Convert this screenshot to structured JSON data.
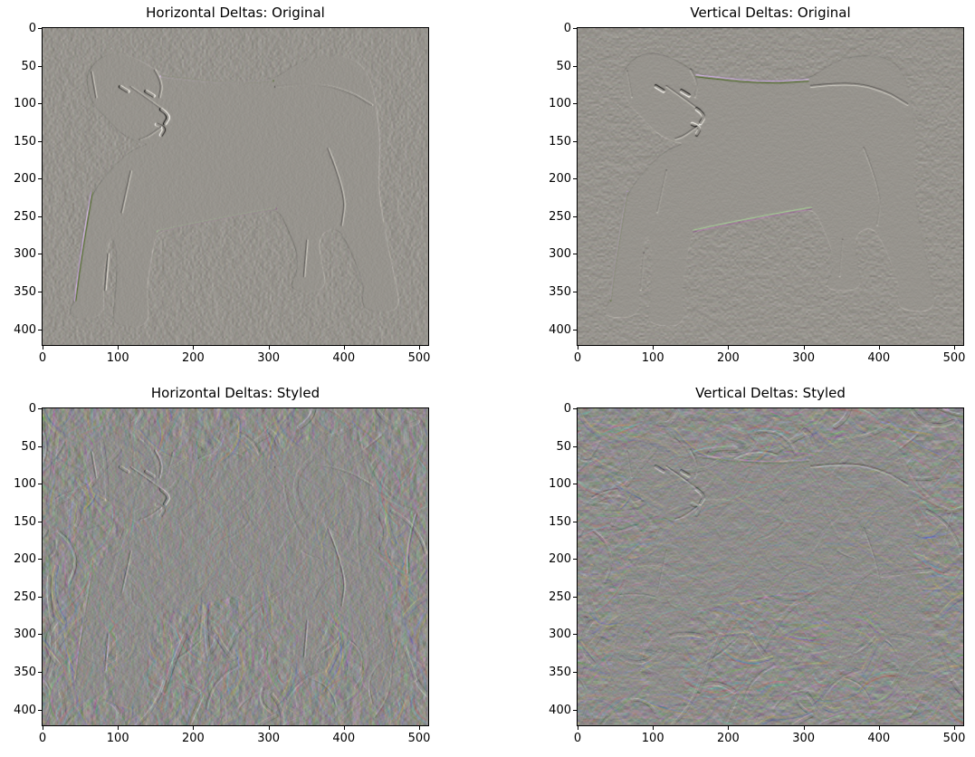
{
  "figure": {
    "background": "#ffffff",
    "kind": "matplotlib-style 2x2 grid of image-gradient plots"
  },
  "chart_data": [
    {
      "type": "heatmap",
      "title": "Horizontal Deltas: Original",
      "delta_axis": "horizontal",
      "source_style": "original",
      "x_ticks": [
        0,
        100,
        200,
        300,
        400,
        500
      ],
      "y_ticks": [
        0,
        50,
        100,
        150,
        200,
        250,
        300,
        350,
        400
      ],
      "x_range": [
        0,
        512
      ],
      "y_range": [
        421,
        0
      ],
      "grid": false,
      "legend": "none",
      "description": "Horizontal pixel differences (d/dx) of an original dog photo; flat warm-gray field with fine grain and an embossed outline of a standing dog."
    },
    {
      "type": "heatmap",
      "title": "Vertical Deltas: Original",
      "delta_axis": "vertical",
      "source_style": "original",
      "x_ticks": [
        0,
        100,
        200,
        300,
        400,
        500
      ],
      "y_ticks": [
        0,
        50,
        100,
        150,
        200,
        250,
        300,
        350,
        400
      ],
      "x_range": [
        0,
        512
      ],
      "y_range": [
        421,
        0
      ],
      "grid": false,
      "legend": "none",
      "description": "Vertical pixel differences (d/dy) of the original dog photo; embossed dog with lavender highlight along chest and head, dark eyes and nose, light muzzle patch."
    },
    {
      "type": "heatmap",
      "title": "Horizontal Deltas: Styled",
      "delta_axis": "horizontal",
      "source_style": "styled",
      "x_ticks": [
        0,
        100,
        200,
        300,
        400,
        500
      ],
      "y_ticks": [
        0,
        50,
        100,
        150,
        200,
        250,
        300,
        350,
        400
      ],
      "x_range": [
        0,
        512
      ],
      "y_range": [
        421,
        0
      ],
      "grid": false,
      "legend": "none",
      "description": "Horizontal pixel differences of a style-transferred version; dense swirly brush-stroke emboss with red/cyan/green/magenta speckled edges, dog faintly visible."
    },
    {
      "type": "heatmap",
      "title": "Vertical Deltas: Styled",
      "delta_axis": "vertical",
      "source_style": "styled",
      "x_ticks": [
        0,
        100,
        200,
        300,
        400,
        500
      ],
      "y_ticks": [
        0,
        50,
        100,
        150,
        200,
        250,
        300,
        350,
        400
      ],
      "x_range": [
        0,
        512
      ],
      "y_range": [
        421,
        0
      ],
      "grid": false,
      "legend": "none",
      "description": "Vertical pixel differences of the styled image; chaotic colorful embossed strokes with the dog silhouette faintly visible."
    }
  ],
  "image_content": {
    "subject": "Labrador-type dog standing, body facing left, head turned toward viewer, tail curled up over back, four legs and paws visible",
    "dog_outline": [
      [
        100,
        178
      ],
      [
        66,
        218
      ],
      [
        55,
        260
      ],
      [
        50,
        310
      ],
      [
        44,
        362
      ],
      [
        36,
        374
      ],
      [
        40,
        386
      ],
      [
        84,
        384
      ],
      [
        80,
        340
      ],
      [
        86,
        300
      ],
      [
        92,
        272
      ],
      [
        100,
        300
      ],
      [
        98,
        350
      ],
      [
        94,
        380
      ],
      [
        98,
        396
      ],
      [
        144,
        397
      ],
      [
        138,
        352
      ],
      [
        146,
        300
      ],
      [
        152,
        270
      ],
      [
        200,
        258
      ],
      [
        260,
        250
      ],
      [
        312,
        238
      ],
      [
        324,
        262
      ],
      [
        340,
        300
      ],
      [
        338,
        326
      ],
      [
        330,
        340
      ],
      [
        336,
        350
      ],
      [
        378,
        348
      ],
      [
        372,
        316
      ],
      [
        366,
        276
      ],
      [
        392,
        262
      ],
      [
        412,
        300
      ],
      [
        428,
        345
      ],
      [
        424,
        360
      ],
      [
        430,
        376
      ],
      [
        477,
        378
      ],
      [
        468,
        330
      ],
      [
        455,
        270
      ],
      [
        446,
        210
      ],
      [
        449,
        160
      ],
      [
        446,
        118
      ],
      [
        438,
        70
      ],
      [
        420,
        44
      ],
      [
        392,
        36
      ],
      [
        356,
        40
      ],
      [
        330,
        52
      ],
      [
        308,
        68
      ],
      [
        260,
        74
      ],
      [
        200,
        72
      ],
      [
        160,
        62
      ],
      [
        130,
        42
      ],
      [
        100,
        32
      ],
      [
        74,
        40
      ],
      [
        58,
        62
      ],
      [
        62,
        88
      ],
      [
        70,
        104
      ],
      [
        84,
        118
      ],
      [
        104,
        140
      ],
      [
        128,
        152
      ],
      [
        142,
        154
      ],
      [
        120,
        162
      ]
    ],
    "dog_details": [
      {
        "name": "tail-inner-edge",
        "tone": "dark",
        "width": 2.5,
        "pts": [
          [
            310,
            78
          ],
          [
            360,
            72
          ],
          [
            408,
            84
          ],
          [
            438,
            102
          ]
        ]
      },
      {
        "name": "muzzle-top",
        "tone": "dark",
        "width": 2,
        "pts": [
          [
            118,
            78
          ],
          [
            144,
            96
          ],
          [
            162,
            110
          ]
        ]
      },
      {
        "name": "nose",
        "tone": "darker",
        "width": 4,
        "pts": [
          [
            158,
            108
          ],
          [
            170,
            116
          ],
          [
            163,
            127
          ]
        ]
      },
      {
        "name": "muzzle-patch",
        "tone": "light",
        "width": 4,
        "pts": [
          [
            152,
            128
          ],
          [
            164,
            132
          ],
          [
            158,
            142
          ]
        ]
      },
      {
        "name": "mouth",
        "tone": "dark",
        "width": 2,
        "pts": [
          [
            158,
            132
          ],
          [
            142,
            144
          ],
          [
            130,
            148
          ]
        ]
      },
      {
        "name": "eye-left",
        "tone": "darker",
        "width": 4,
        "pts": [
          [
            104,
            78
          ],
          [
            114,
            84
          ]
        ]
      },
      {
        "name": "eye-right",
        "tone": "darker",
        "width": 4,
        "pts": [
          [
            138,
            84
          ],
          [
            148,
            90
          ]
        ]
      },
      {
        "name": "ear-right",
        "tone": "dark",
        "width": 2.5,
        "pts": [
          [
            150,
            56
          ],
          [
            160,
            72
          ],
          [
            156,
            92
          ]
        ]
      },
      {
        "name": "ear-left-inner",
        "tone": "dark",
        "width": 2,
        "pts": [
          [
            66,
            58
          ],
          [
            72,
            92
          ]
        ]
      },
      {
        "name": "front-leg-separation",
        "tone": "dark",
        "width": 2,
        "pts": [
          [
            88,
            300
          ],
          [
            84,
            348
          ]
        ]
      },
      {
        "name": "hind-leg-separation",
        "tone": "dark",
        "width": 2,
        "pts": [
          [
            352,
            282
          ],
          [
            348,
            330
          ]
        ]
      },
      {
        "name": "shoulder-line",
        "tone": "dark",
        "width": 2,
        "pts": [
          [
            118,
            190
          ],
          [
            106,
            245
          ]
        ]
      },
      {
        "name": "haunch-line",
        "tone": "dark",
        "width": 2,
        "pts": [
          [
            380,
            160
          ],
          [
            404,
            220
          ],
          [
            398,
            262
          ]
        ]
      },
      {
        "name": "back-highlight",
        "tone": "back",
        "width": 2.5,
        "pts": [
          [
            158,
            64
          ],
          [
            240,
            74
          ],
          [
            306,
            70
          ]
        ]
      },
      {
        "name": "belly-highlight",
        "tone": "belly",
        "width": 2.5,
        "pts": [
          [
            154,
            270
          ],
          [
            240,
            252
          ],
          [
            310,
            240
          ]
        ]
      },
      {
        "name": "chest-highlight",
        "tone": "back",
        "width": 2,
        "pts": [
          [
            66,
            218
          ],
          [
            52,
            300
          ],
          [
            44,
            362
          ]
        ]
      }
    ]
  },
  "render": {
    "original": {
      "source_base": [
        150,
        147,
        140
      ],
      "out_base": [
        151,
        148,
        142
      ],
      "gain": 2.4,
      "dog_fill": "rgb(138,135,128)",
      "dog_alpha": 0.85,
      "tone_dark": "rgb(112,110,104)",
      "tone_darker": "rgb(70,68,64)",
      "tone_light": "rgb(196,194,186)",
      "tone_back": "rgb(176,158,182)",
      "tone_belly": "rgb(146,166,134)"
    },
    "styled": {
      "source_base": [
        141,
        140,
        138
      ],
      "out_base": [
        142,
        141,
        139
      ],
      "gain": 1.5,
      "dog_fill": "rgb(150,147,140)",
      "dog_alpha": 0.5,
      "tone_dark": "rgb(90,88,84)",
      "tone_darker": "rgb(55,54,52)",
      "tone_light": "rgb(200,198,192)",
      "tone_back": "rgb(176,158,182)",
      "tone_belly": "rgb(146,166,134)",
      "stroke_palette": [
        "#d86a6a",
        "#62c8c0",
        "#74c462",
        "#6a7ad8",
        "#d8c862",
        "#c86ab8",
        "#e8e8e8",
        "#404048",
        "#8899aa",
        "#aa8866"
      ]
    },
    "axis_color": "#000000",
    "text_color": "#000000"
  }
}
